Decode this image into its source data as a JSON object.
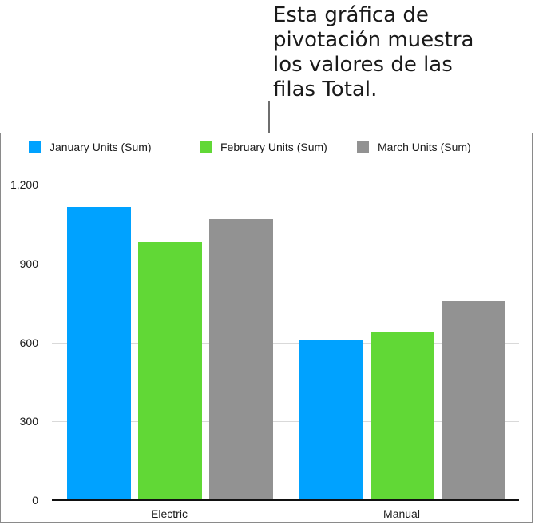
{
  "callout": {
    "text": "Esta gráfica de\npivotación muestra\nlos valores de las\nfilas Total."
  },
  "colors": {
    "january": "#00a2ff",
    "february": "#61d836",
    "march": "#929292"
  },
  "chart_data": {
    "type": "bar",
    "title": "",
    "xlabel": "",
    "ylabel": "",
    "categories": [
      "Electric",
      "Manual"
    ],
    "series": [
      {
        "name": "January Units (Sum)",
        "values": [
          1115,
          611
        ],
        "color": "#00a2ff"
      },
      {
        "name": "February Units (Sum)",
        "values": [
          981,
          638
        ],
        "color": "#61d836"
      },
      {
        "name": "March Units (Sum)",
        "values": [
          1069,
          756
        ],
        "color": "#929292"
      }
    ],
    "ylim": [
      0,
      1200
    ],
    "yticks": [
      "0",
      "300",
      "600",
      "900",
      "1,200"
    ],
    "grid": true,
    "legend_position": "top"
  }
}
